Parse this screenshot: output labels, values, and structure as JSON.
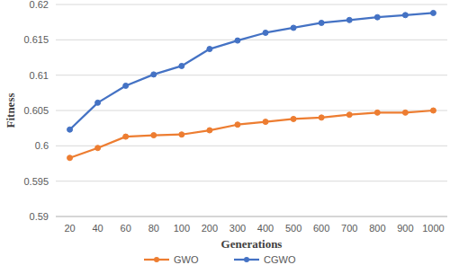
{
  "chart_data": {
    "type": "line",
    "x_label": "Generations",
    "y_label": "Fitness",
    "categories": [
      "20",
      "40",
      "60",
      "80",
      "100",
      "200",
      "300",
      "400",
      "500",
      "600",
      "700",
      "800",
      "900",
      "1000"
    ],
    "series": [
      {
        "name": "GWO",
        "color": "#ed7d31",
        "marker": "circle",
        "values": [
          0.5983,
          0.5997,
          0.6013,
          0.6015,
          0.6016,
          0.6022,
          0.603,
          0.6034,
          0.6038,
          0.604,
          0.6044,
          0.6047,
          0.6047,
          0.605
        ]
      },
      {
        "name": "CGWO",
        "color": "#4472c4",
        "marker": "circle",
        "values": [
          0.6023,
          0.6061,
          0.6085,
          0.6101,
          0.6113,
          0.6137,
          0.6149,
          0.616,
          0.6167,
          0.6174,
          0.6178,
          0.6182,
          0.6185,
          0.6188
        ]
      }
    ],
    "ylim": [
      0.59,
      0.62
    ],
    "yticks": [
      0.59,
      0.595,
      0.6,
      0.605,
      0.61,
      0.615,
      0.62
    ],
    "grid": true,
    "legend": "bottom"
  }
}
